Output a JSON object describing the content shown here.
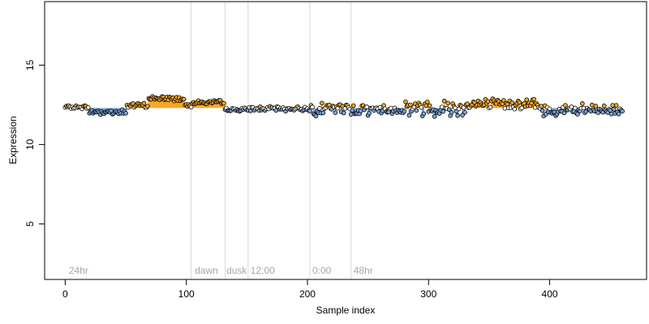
{
  "chart_data": {
    "type": "scatter",
    "title": "",
    "xlabel": "Sample index",
    "ylabel": "Expression",
    "xlim": [
      -17,
      480
    ],
    "ylim": [
      1.5,
      19.0
    ],
    "x_ticks": [
      0,
      100,
      200,
      300,
      400
    ],
    "y_ticks": [
      5,
      10,
      15
    ],
    "baseline": 12.3,
    "grid": false,
    "legend": "none",
    "colors": {
      "above": "#f5a623",
      "below": "#7ea6d6",
      "neutral": "#ffffff",
      "outline": "#000000",
      "divider": "#d9d9d9",
      "phase_label": "#a6a6a6"
    },
    "dividers": [
      104,
      132,
      151,
      202,
      236
    ],
    "phases": [
      {
        "label": "24hr",
        "x": 3
      },
      {
        "label": "dawn",
        "x": 107
      },
      {
        "label": "dusk",
        "x": 133
      },
      {
        "label": "12:00",
        "x": 153
      },
      {
        "label": "0:00",
        "x": 204
      },
      {
        "label": "48hr",
        "x": 238
      }
    ],
    "segments": [
      {
        "x": [
          0,
          19
        ],
        "mean": 12.35,
        "spread": 0.08
      },
      {
        "x": [
          20,
          50
        ],
        "mean": 12.05,
        "spread": 0.15
      },
      {
        "x": [
          51,
          68
        ],
        "mean": 12.45,
        "spread": 0.12
      },
      {
        "x": [
          69,
          98
        ],
        "mean": 12.9,
        "spread": 0.15
      },
      {
        "x": [
          99,
          104
        ],
        "mean": 12.5,
        "spread": 0.1
      },
      {
        "x": [
          105,
          131
        ],
        "mean": 12.65,
        "spread": 0.1
      },
      {
        "x": [
          132,
          151
        ],
        "mean": 12.2,
        "spread": 0.08
      },
      {
        "x": [
          152,
          201
        ],
        "mean": 12.25,
        "spread": 0.1
      },
      {
        "x": [
          202,
          235
        ],
        "mean": 12.25,
        "spread": 0.3
      },
      {
        "x": [
          236,
          280
        ],
        "mean": 12.2,
        "spread": 0.25
      },
      {
        "x": [
          281,
          330
        ],
        "mean": 12.3,
        "spread": 0.4
      },
      {
        "x": [
          331,
          390
        ],
        "mean": 12.55,
        "spread": 0.25
      },
      {
        "x": [
          391,
          460
        ],
        "mean": 12.15,
        "spread": 0.3
      }
    ],
    "points_note_count": 461
  }
}
